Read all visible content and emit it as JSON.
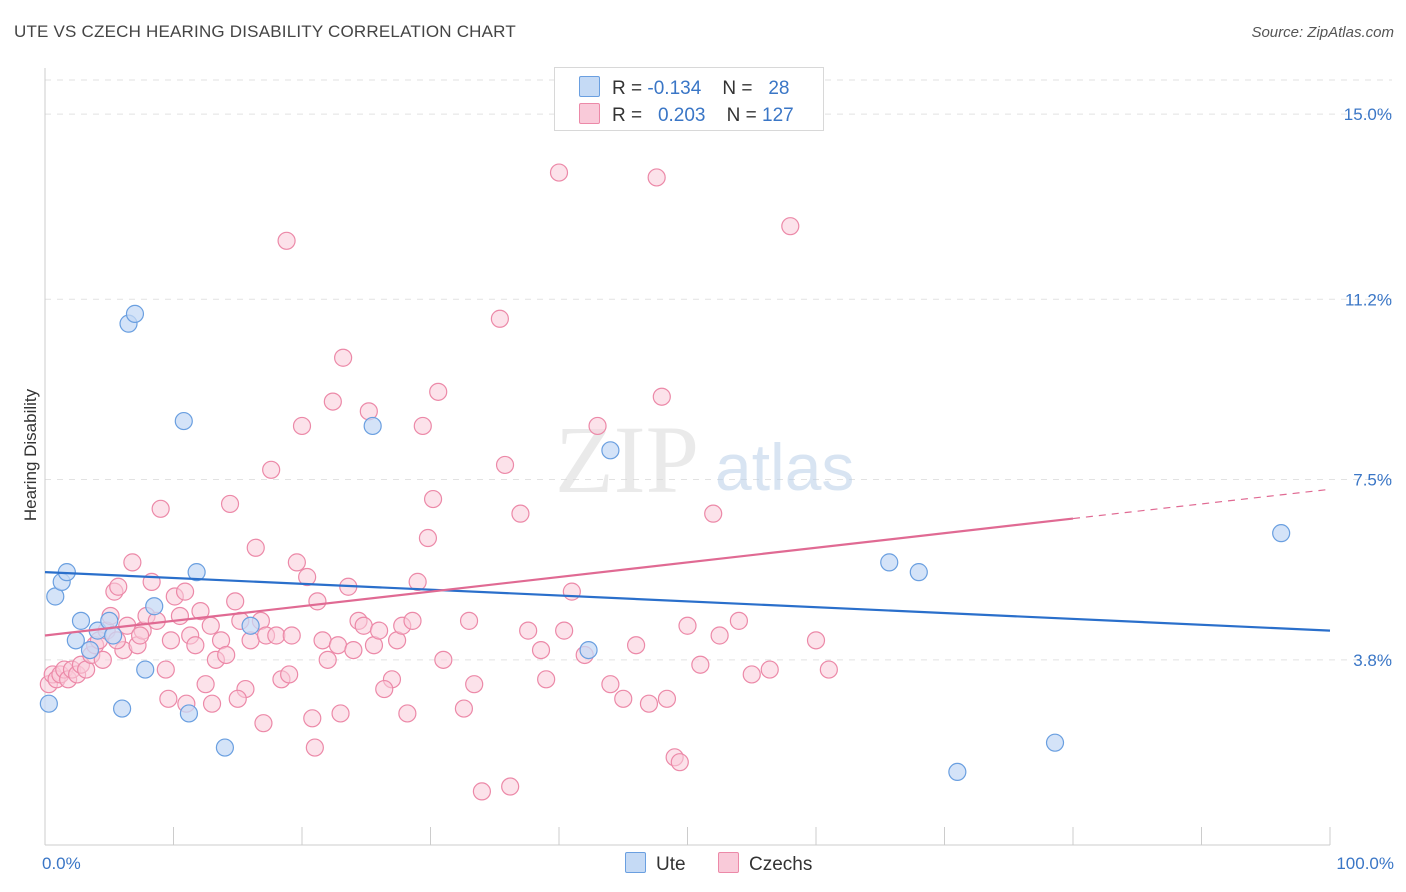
{
  "header": {
    "title": "UTE VS CZECH HEARING DISABILITY CORRELATION CHART",
    "source": "Source: ZipAtlas.com"
  },
  "watermark": {
    "zip": "ZIP",
    "atlas": "atlas"
  },
  "legend": {
    "rows": [
      {
        "r_label": "R =",
        "r_value": "-0.134",
        "n_label": "N =",
        "n_value": "28"
      },
      {
        "r_label": "R =",
        "r_value": "0.203",
        "n_label": "N =",
        "n_value": "127"
      }
    ]
  },
  "colors": {
    "ute_fill": "#c5daf5",
    "ute_stroke": "#6a9fe0",
    "ute_line": "#2a6fcb",
    "czech_fill": "#f9cad9",
    "czech_stroke": "#ec89a8",
    "czech_line": "#e06a93",
    "axis_text": "#3a76c6",
    "grid": "#e2e2e2"
  },
  "chart_data": {
    "type": "scatter",
    "title": "UTE VS CZECH HEARING DISABILITY CORRELATION CHART",
    "xlabel": "",
    "ylabel": "Hearing Disability",
    "xlim": [
      0,
      100
    ],
    "ylim": [
      0,
      15.7
    ],
    "x_tick_labels": [
      "0.0%",
      "100.0%"
    ],
    "y_ticks": [
      3.8,
      7.5,
      11.2,
      15.0
    ],
    "y_tick_labels": [
      "3.8%",
      "7.5%",
      "11.2%",
      "15.0%"
    ],
    "grid": "horizontal-dashed",
    "legend_position": "top-center",
    "series": [
      {
        "name": "Ute",
        "r": -0.134,
        "n": 28,
        "trend": {
          "x": [
            0,
            100
          ],
          "y": [
            5.6,
            4.4
          ]
        },
        "points": [
          [
            0.3,
            2.9
          ],
          [
            0.8,
            5.1
          ],
          [
            1.3,
            5.4
          ],
          [
            1.7,
            5.6
          ],
          [
            2.4,
            4.2
          ],
          [
            2.8,
            4.6
          ],
          [
            3.5,
            4.0
          ],
          [
            4.1,
            4.4
          ],
          [
            5.0,
            4.6
          ],
          [
            5.3,
            4.3
          ],
          [
            6.0,
            2.8
          ],
          [
            6.5,
            10.7
          ],
          [
            7.0,
            10.9
          ],
          [
            7.8,
            3.6
          ],
          [
            8.5,
            4.9
          ],
          [
            10.8,
            8.7
          ],
          [
            11.2,
            2.7
          ],
          [
            11.8,
            5.6
          ],
          [
            14.0,
            2.0
          ],
          [
            16.0,
            4.5
          ],
          [
            25.5,
            8.6
          ],
          [
            42.3,
            4.0
          ],
          [
            44.0,
            8.1
          ],
          [
            65.7,
            5.8
          ],
          [
            68.0,
            5.6
          ],
          [
            71.0,
            1.5
          ],
          [
            78.6,
            2.1
          ],
          [
            96.2,
            6.4
          ]
        ]
      },
      {
        "name": "Czechs",
        "r": 0.203,
        "n": 127,
        "trend": {
          "x": [
            0,
            80
          ],
          "y": [
            4.3,
            6.7
          ]
        },
        "trend_dashed": {
          "x": [
            80,
            100
          ],
          "y": [
            6.7,
            7.3
          ]
        },
        "points": [
          [
            0.3,
            3.3
          ],
          [
            0.6,
            3.5
          ],
          [
            0.9,
            3.4
          ],
          [
            1.2,
            3.5
          ],
          [
            1.5,
            3.6
          ],
          [
            1.8,
            3.4
          ],
          [
            2.1,
            3.6
          ],
          [
            2.5,
            3.5
          ],
          [
            2.8,
            3.7
          ],
          [
            3.2,
            3.6
          ],
          [
            3.6,
            3.9
          ],
          [
            3.9,
            4.1
          ],
          [
            4.2,
            4.2
          ],
          [
            4.5,
            3.8
          ],
          [
            4.8,
            4.4
          ],
          [
            5.1,
            4.7
          ],
          [
            5.4,
            5.2
          ],
          [
            5.7,
            5.3
          ],
          [
            6.1,
            4.0
          ],
          [
            6.4,
            4.5
          ],
          [
            6.8,
            5.8
          ],
          [
            7.2,
            4.1
          ],
          [
            7.6,
            4.4
          ],
          [
            7.9,
            4.7
          ],
          [
            8.3,
            5.4
          ],
          [
            8.7,
            4.6
          ],
          [
            9.0,
            6.9
          ],
          [
            9.4,
            3.6
          ],
          [
            9.8,
            4.2
          ],
          [
            10.1,
            5.1
          ],
          [
            10.5,
            4.7
          ],
          [
            10.9,
            5.2
          ],
          [
            11.3,
            4.3
          ],
          [
            11.7,
            4.1
          ],
          [
            12.1,
            4.8
          ],
          [
            12.5,
            3.3
          ],
          [
            12.9,
            4.5
          ],
          [
            13.3,
            3.8
          ],
          [
            13.7,
            4.2
          ],
          [
            14.1,
            3.9
          ],
          [
            14.4,
            7.0
          ],
          [
            14.8,
            5.0
          ],
          [
            15.2,
            4.6
          ],
          [
            15.6,
            3.2
          ],
          [
            16.0,
            4.2
          ],
          [
            16.4,
            6.1
          ],
          [
            16.8,
            4.6
          ],
          [
            17.2,
            4.3
          ],
          [
            17.6,
            7.7
          ],
          [
            18.0,
            4.3
          ],
          [
            18.4,
            3.4
          ],
          [
            18.8,
            12.4
          ],
          [
            19.2,
            4.3
          ],
          [
            19.6,
            5.8
          ],
          [
            20.0,
            8.6
          ],
          [
            20.4,
            5.5
          ],
          [
            20.8,
            2.6
          ],
          [
            21.2,
            5.0
          ],
          [
            21.6,
            4.2
          ],
          [
            22.0,
            3.8
          ],
          [
            22.4,
            9.1
          ],
          [
            22.8,
            4.1
          ],
          [
            23.2,
            10.0
          ],
          [
            23.6,
            5.3
          ],
          [
            24.0,
            4.0
          ],
          [
            24.4,
            4.6
          ],
          [
            24.8,
            4.5
          ],
          [
            25.2,
            8.9
          ],
          [
            25.6,
            4.1
          ],
          [
            26.0,
            4.4
          ],
          [
            27.0,
            3.4
          ],
          [
            27.4,
            4.2
          ],
          [
            27.8,
            4.5
          ],
          [
            28.2,
            2.7
          ],
          [
            28.6,
            4.6
          ],
          [
            29.0,
            5.4
          ],
          [
            29.4,
            8.6
          ],
          [
            29.8,
            6.3
          ],
          [
            30.2,
            7.1
          ],
          [
            30.6,
            9.3
          ],
          [
            31.0,
            3.8
          ],
          [
            32.6,
            2.8
          ],
          [
            33.0,
            4.6
          ],
          [
            33.4,
            3.3
          ],
          [
            34.0,
            1.1
          ],
          [
            35.4,
            10.8
          ],
          [
            35.8,
            7.8
          ],
          [
            36.2,
            1.2
          ],
          [
            37.0,
            6.8
          ],
          [
            39.0,
            3.4
          ],
          [
            40.0,
            13.8
          ],
          [
            40.4,
            4.4
          ],
          [
            41.0,
            5.2
          ],
          [
            42.0,
            3.9
          ],
          [
            43.0,
            8.6
          ],
          [
            44.0,
            3.3
          ],
          [
            45.0,
            3.0
          ],
          [
            46.0,
            4.1
          ],
          [
            47.0,
            2.9
          ],
          [
            47.6,
            13.7
          ],
          [
            48.0,
            9.2
          ],
          [
            48.4,
            3.0
          ],
          [
            49.0,
            1.8
          ],
          [
            49.4,
            1.7
          ],
          [
            52.0,
            6.8
          ],
          [
            55.0,
            3.5
          ],
          [
            56.4,
            3.6
          ],
          [
            58.0,
            12.7
          ],
          [
            60.0,
            4.2
          ],
          [
            61.0,
            3.6
          ],
          [
            50.0,
            4.5
          ],
          [
            51.0,
            3.7
          ],
          [
            52.5,
            4.3
          ],
          [
            54.0,
            4.6
          ],
          [
            26.4,
            3.2
          ],
          [
            23.0,
            2.7
          ],
          [
            21.0,
            2.0
          ],
          [
            19.0,
            3.5
          ],
          [
            17.0,
            2.5
          ],
          [
            15.0,
            3.0
          ],
          [
            13.0,
            2.9
          ],
          [
            11.0,
            2.9
          ],
          [
            9.6,
            3.0
          ],
          [
            7.4,
            4.3
          ],
          [
            5.6,
            4.2
          ],
          [
            37.6,
            4.4
          ],
          [
            38.6,
            4.0
          ]
        ]
      }
    ]
  }
}
